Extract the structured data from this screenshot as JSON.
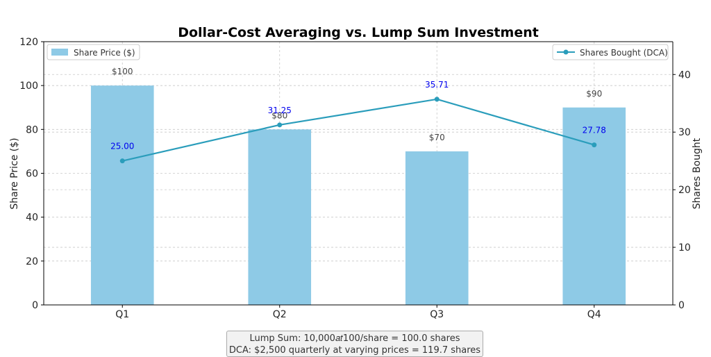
{
  "chart_data": {
    "type": "bar",
    "title": "Dollar-Cost Averaging vs. Lump Sum Investment",
    "categories": [
      "Q1",
      "Q2",
      "Q3",
      "Q4"
    ],
    "ylabel": "Share Price ($)",
    "y2label": "Shares Bought",
    "ylim": [
      0,
      120
    ],
    "y2lim": [
      0,
      45.7
    ],
    "yticks": [
      0,
      20,
      40,
      60,
      80,
      100,
      120
    ],
    "y2ticks": [
      0,
      10,
      20,
      30,
      40
    ],
    "grid": true,
    "series": [
      {
        "name": "Share Price ($)",
        "type": "bar",
        "axis": "left",
        "values": [
          100,
          80,
          70,
          90
        ],
        "labels": [
          "$100",
          "$80",
          "$70",
          "$90"
        ],
        "color": "#8ecae6"
      },
      {
        "name": "Shares Bought (DCA)",
        "type": "line",
        "axis": "right",
        "values": [
          25.0,
          31.25,
          35.71,
          27.78
        ],
        "labels": [
          "25.00",
          "31.25",
          "35.71",
          "27.78"
        ],
        "color": "#2a9dbb",
        "label_color": "#0000ee"
      }
    ],
    "legends": {
      "bar": "top-left",
      "line": "top-right"
    }
  },
  "annotation": {
    "line1": "Lump Sum: 10,000𝑎𝑡100/share = 100.0 shares",
    "line2": "DCA: $2,500 quarterly at varying prices = 119.7 shares"
  }
}
